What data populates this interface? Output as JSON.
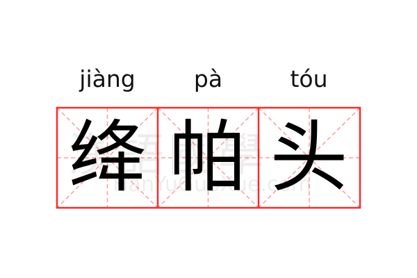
{
  "entries": [
    {
      "pinyin": "jiàng",
      "char": "绛"
    },
    {
      "pinyin": "pà",
      "char": "帕"
    },
    {
      "pinyin": "tóu",
      "char": "头"
    }
  ],
  "watermark": {
    "chinese": "漢語國學",
    "latin": "HanYuGuoXue.com"
  },
  "colors": {
    "grid_border": "#ff2a2a",
    "grid_guides": "#ff9a9a",
    "text": "#000000"
  }
}
